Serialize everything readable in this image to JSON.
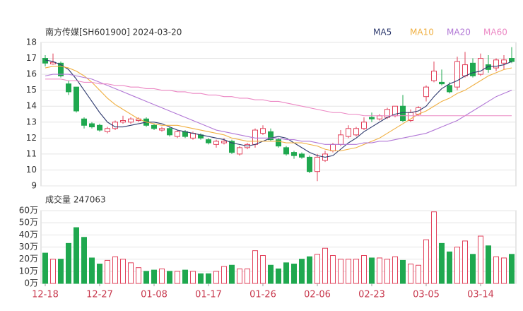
{
  "chart_data": [
    {
      "type": "candlestick",
      "title": "南方传媒[SH601900] 2024-03-20",
      "ylim": [
        9,
        18
      ],
      "yticks": [
        9,
        10,
        11,
        12,
        13,
        14,
        15,
        16,
        17,
        18
      ],
      "grid": true,
      "up_color": "#e2405a",
      "down_color": "#1fa84f",
      "open": [
        17.0,
        16.65,
        16.7,
        15.4,
        15.2,
        13.2,
        12.9,
        12.8,
        12.4,
        12.6,
        13.0,
        13.0,
        13.1,
        13.2,
        12.8,
        12.5,
        12.6,
        12.1,
        12.4,
        12.0,
        12.2,
        11.9,
        11.6,
        11.7,
        11.8,
        11.0,
        11.4,
        11.6,
        12.3,
        12.4,
        11.9,
        11.4,
        11.1,
        11.0,
        10.8,
        9.9,
        10.6,
        11.2,
        11.6,
        12.1,
        12.2,
        12.6,
        13.3,
        13.2,
        13.3,
        13.4,
        14.0,
        13.1,
        13.5,
        14.6,
        15.6,
        15.5,
        15.3,
        15.2,
        15.9,
        16.7,
        16.0,
        16.6,
        16.4,
        16.7,
        17.0
      ],
      "close": [
        16.7,
        16.75,
        15.9,
        14.9,
        13.7,
        12.8,
        12.7,
        12.5,
        12.6,
        13.0,
        13.1,
        13.2,
        13.2,
        12.8,
        12.6,
        12.6,
        12.2,
        12.4,
        12.1,
        12.3,
        12.0,
        11.7,
        11.8,
        11.8,
        11.1,
        11.4,
        11.6,
        12.5,
        12.6,
        11.9,
        11.5,
        11.0,
        10.9,
        10.8,
        9.9,
        10.8,
        11.0,
        11.6,
        12.2,
        12.6,
        12.6,
        13.0,
        13.2,
        13.4,
        13.8,
        14.0,
        13.1,
        13.6,
        13.9,
        15.2,
        16.2,
        15.4,
        14.9,
        16.8,
        16.6,
        15.9,
        17.0,
        16.3,
        16.9,
        16.9,
        16.8
      ],
      "high": [
        17.2,
        17.3,
        16.8,
        15.6,
        15.2,
        13.3,
        13.0,
        12.9,
        12.7,
        13.1,
        13.4,
        13.3,
        13.3,
        13.3,
        12.9,
        12.7,
        12.7,
        12.5,
        12.5,
        12.4,
        12.3,
        12.0,
        11.9,
        12.0,
        11.9,
        11.5,
        11.7,
        12.6,
        12.8,
        12.6,
        12.0,
        11.5,
        11.2,
        11.1,
        10.9,
        11.0,
        11.2,
        11.7,
        12.5,
        12.8,
        12.7,
        13.3,
        13.6,
        13.5,
        13.9,
        14.0,
        14.7,
        13.8,
        14.0,
        15.3,
        16.8,
        16.3,
        15.5,
        17.1,
        17.4,
        17.0,
        17.3,
        17.2,
        17.0,
        17.2,
        17.7
      ],
      "low": [
        16.5,
        16.6,
        15.8,
        14.7,
        13.6,
        12.6,
        12.6,
        12.4,
        12.3,
        12.5,
        12.9,
        12.9,
        13.0,
        12.7,
        12.5,
        12.4,
        12.1,
        12.0,
        12.0,
        11.9,
        11.9,
        11.6,
        11.4,
        11.6,
        11.0,
        10.9,
        11.3,
        11.4,
        12.2,
        11.8,
        11.4,
        10.9,
        10.7,
        10.7,
        9.8,
        9.3,
        10.5,
        11.1,
        11.5,
        12.0,
        12.1,
        12.5,
        13.0,
        13.1,
        13.2,
        13.3,
        13.0,
        13.0,
        13.4,
        14.3,
        15.5,
        15.3,
        14.8,
        15.0,
        15.8,
        15.8,
        15.9,
        16.1,
        16.2,
        16.3,
        16.7
      ],
      "series": [
        {
          "name": "MA5",
          "color": "#2e3a6e",
          "values": [
            16.9,
            16.8,
            16.6,
            16.3,
            15.7,
            15.0,
            14.3,
            13.6,
            13.0,
            12.7,
            12.7,
            12.8,
            12.9,
            13.0,
            13.0,
            12.9,
            12.7,
            12.5,
            12.4,
            12.3,
            12.2,
            12.1,
            12.0,
            11.9,
            11.7,
            11.6,
            11.5,
            11.6,
            11.8,
            12.0,
            12.1,
            12.0,
            11.7,
            11.4,
            11.1,
            10.9,
            10.8,
            10.9,
            11.3,
            11.7,
            12.0,
            12.4,
            12.7,
            13.0,
            13.3,
            13.5,
            13.6,
            13.6,
            13.7,
            14.0,
            14.6,
            15.1,
            15.4,
            15.6,
            15.9,
            16.1,
            16.2,
            16.5,
            16.5,
            16.6,
            16.8
          ]
        },
        {
          "name": "MA10",
          "color": "#f0b043",
          "values": [
            16.4,
            16.5,
            16.5,
            16.4,
            16.2,
            15.9,
            15.5,
            15.0,
            14.5,
            14.1,
            13.8,
            13.5,
            13.2,
            13.0,
            12.9,
            12.8,
            12.8,
            12.8,
            12.7,
            12.6,
            12.5,
            12.4,
            12.3,
            12.2,
            12.0,
            11.9,
            11.8,
            11.8,
            11.8,
            11.8,
            11.8,
            11.7,
            11.7,
            11.7,
            11.6,
            11.5,
            11.3,
            11.2,
            11.2,
            11.3,
            11.4,
            11.6,
            11.8,
            12.0,
            12.3,
            12.6,
            12.9,
            13.2,
            13.5,
            13.7,
            14.0,
            14.3,
            14.5,
            14.8,
            15.0,
            15.3,
            15.6,
            15.9,
            16.1,
            16.3,
            16.4
          ]
        },
        {
          "name": "MA20",
          "color": "#b278d6",
          "values": [
            15.9,
            16.0,
            16.0,
            16.0,
            15.9,
            15.8,
            15.7,
            15.5,
            15.3,
            15.1,
            14.9,
            14.7,
            14.5,
            14.3,
            14.1,
            13.9,
            13.7,
            13.5,
            13.3,
            13.1,
            12.9,
            12.7,
            12.5,
            12.4,
            12.3,
            12.2,
            12.1,
            12.0,
            12.0,
            12.0,
            12.0,
            11.9,
            11.9,
            11.8,
            11.8,
            11.7,
            11.6,
            11.6,
            11.6,
            11.6,
            11.6,
            11.7,
            11.7,
            11.8,
            11.8,
            11.9,
            12.0,
            12.1,
            12.2,
            12.3,
            12.5,
            12.7,
            12.9,
            13.1,
            13.4,
            13.7,
            14.0,
            14.3,
            14.6,
            14.8,
            15.0
          ]
        },
        {
          "name": "MA60",
          "color": "#ec88c4",
          "values": [
            15.7,
            15.7,
            15.7,
            15.6,
            15.6,
            15.5,
            15.5,
            15.4,
            15.4,
            15.3,
            15.3,
            15.2,
            15.2,
            15.1,
            15.1,
            15.0,
            15.0,
            14.9,
            14.9,
            14.8,
            14.8,
            14.7,
            14.7,
            14.6,
            14.6,
            14.5,
            14.5,
            14.4,
            14.4,
            14.3,
            14.3,
            14.2,
            14.1,
            14.0,
            13.9,
            13.8,
            13.7,
            13.6,
            13.6,
            13.5,
            13.5,
            13.4,
            13.4,
            13.4,
            13.4,
            13.4,
            13.4,
            13.4,
            13.4,
            13.4,
            13.4,
            13.4,
            13.4,
            13.4,
            13.4,
            13.4,
            13.4,
            13.4,
            13.4,
            13.4,
            13.4
          ]
        }
      ]
    },
    {
      "type": "bar",
      "title": "成交量 247063",
      "ylim": [
        0,
        60
      ],
      "grid": true,
      "yticks": [
        {
          "value": 0,
          "label": "0万"
        },
        {
          "value": 10,
          "label": "10万"
        },
        {
          "value": 20,
          "label": "20万"
        },
        {
          "value": 30,
          "label": "30万"
        },
        {
          "value": 40,
          "label": "40万"
        },
        {
          "value": 50,
          "label": "50万"
        },
        {
          "value": 60,
          "label": "60万"
        }
      ],
      "categories": [
        "12-18",
        null,
        null,
        null,
        null,
        null,
        null,
        "12-27",
        null,
        null,
        null,
        null,
        null,
        null,
        "01-08",
        null,
        null,
        null,
        null,
        null,
        null,
        "01-17",
        null,
        null,
        null,
        null,
        null,
        null,
        "01-26",
        null,
        null,
        null,
        null,
        null,
        null,
        "02-06",
        null,
        null,
        null,
        null,
        null,
        null,
        "02-23",
        null,
        null,
        null,
        null,
        null,
        null,
        "03-05",
        null,
        null,
        null,
        null,
        null,
        null,
        "03-14",
        null,
        null,
        null,
        null
      ],
      "values": [
        25,
        20,
        20,
        33,
        46,
        38,
        21,
        16,
        19,
        22,
        20,
        17,
        13,
        10,
        11,
        12,
        10,
        10,
        11,
        10,
        8,
        8,
        10,
        14,
        15,
        12,
        12,
        27,
        23,
        15,
        12,
        17,
        16,
        20,
        22,
        24,
        29,
        23,
        20,
        20,
        20,
        23,
        21,
        21,
        20,
        22,
        19,
        16,
        15,
        36,
        59,
        33,
        26,
        30,
        35,
        24,
        39,
        31,
        22,
        21,
        24
      ]
    }
  ]
}
